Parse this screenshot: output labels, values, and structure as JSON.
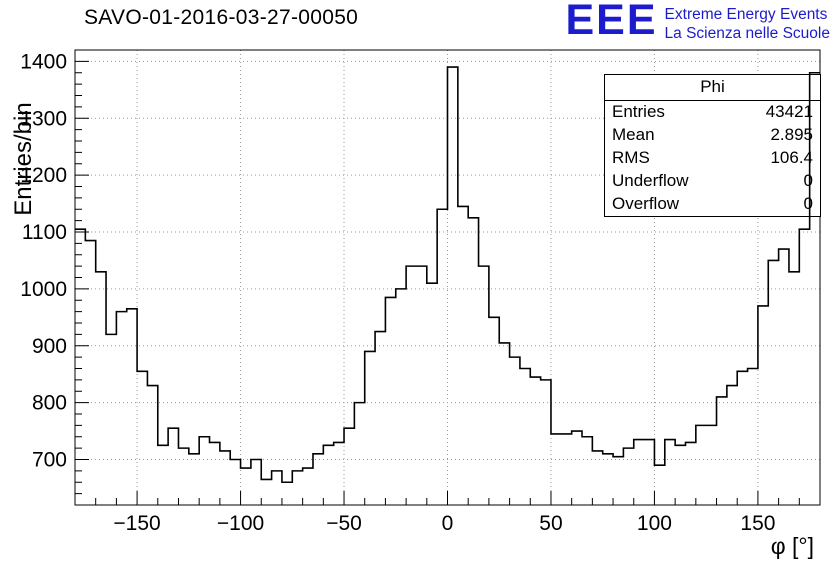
{
  "title": "SAVO-01-2016-03-27-00050",
  "logo": {
    "eee": "EEE",
    "line1": "Extreme Energy Events",
    "line2": "La Scienza nelle Scuole",
    "color": "#1c1ccd"
  },
  "stats": {
    "title": "Phi",
    "rows": [
      {
        "label": "Entries",
        "value": "43421"
      },
      {
        "label": "Mean",
        "value": "2.895"
      },
      {
        "label": "RMS",
        "value": "106.4"
      },
      {
        "label": "Underflow",
        "value": "0"
      },
      {
        "label": "Overflow",
        "value": "0"
      }
    ]
  },
  "chart_data": {
    "type": "bar",
    "style": "step-histogram-outline",
    "title": "SAVO-01-2016-03-27-00050",
    "xlabel": "φ [°]",
    "ylabel": "Entries/bin",
    "x_start": -180,
    "bin_width": 5,
    "values": [
      1105,
      1085,
      1030,
      920,
      960,
      965,
      855,
      830,
      725,
      755,
      720,
      710,
      740,
      730,
      715,
      700,
      685,
      700,
      665,
      680,
      660,
      680,
      685,
      710,
      725,
      730,
      755,
      800,
      890,
      925,
      985,
      1000,
      1040,
      1040,
      1010,
      1140,
      1390,
      1145,
      1125,
      1040,
      950,
      905,
      880,
      860,
      845,
      840,
      745,
      745,
      750,
      740,
      715,
      710,
      705,
      720,
      735,
      735,
      690,
      735,
      725,
      730,
      760,
      760,
      810,
      830,
      855,
      860,
      970,
      1050,
      1070,
      1030,
      1105,
      1380
    ],
    "xlim": [
      -180,
      180
    ],
    "ylim": [
      620,
      1420
    ],
    "x_ticks": [
      -150,
      -100,
      -50,
      0,
      50,
      100,
      150
    ],
    "y_ticks": [
      700,
      800,
      900,
      1000,
      1100,
      1200,
      1300,
      1400
    ],
    "x_minor_step": 10,
    "y_minor_step": 20,
    "grid": true,
    "grid_color": "#999999",
    "line_color": "#000000",
    "legend": "none"
  }
}
